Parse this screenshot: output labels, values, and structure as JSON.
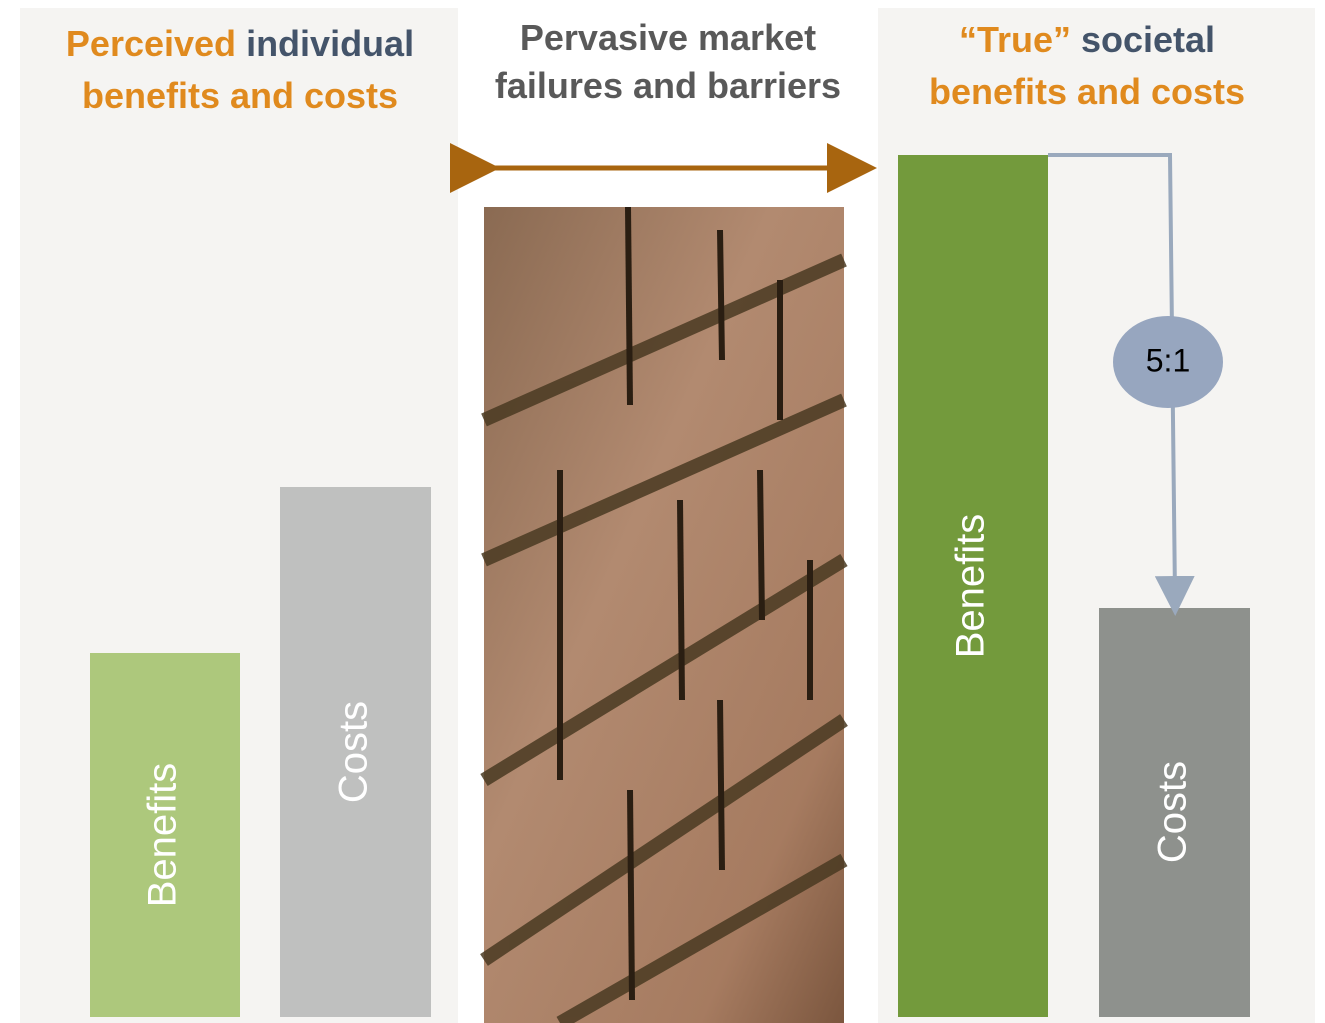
{
  "left_panel": {
    "title": {
      "line1": [
        "Perceived",
        "individual"
      ],
      "line2": "benefits and costs"
    },
    "bars": [
      "Benefits",
      "Costs"
    ]
  },
  "middle_panel": {
    "title": {
      "line1": "Pervasive market",
      "line2": "failures and barriers"
    }
  },
  "right_panel": {
    "title": {
      "line1": [
        "“True”",
        "societal"
      ],
      "line2": "benefits and costs"
    },
    "bars": [
      "Benefits",
      "Costs"
    ],
    "ratio": "5:1"
  }
}
